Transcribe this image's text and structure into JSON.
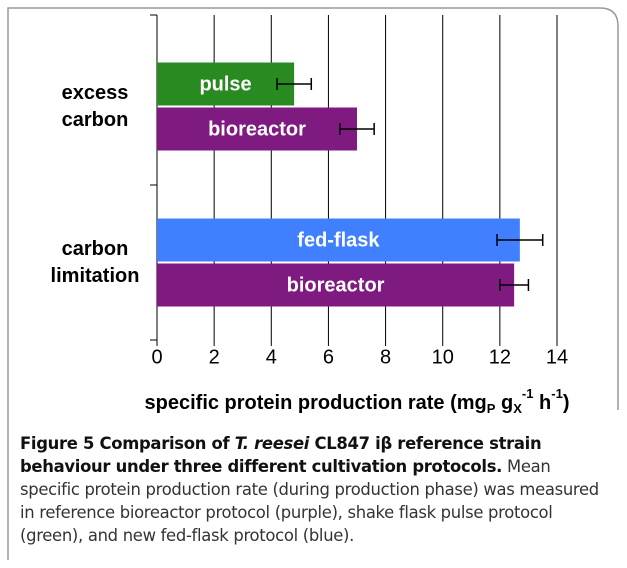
{
  "chart_data": {
    "type": "grouped-hbar",
    "groups": [
      {
        "label": [
          "excess",
          "carbon"
        ],
        "bars": [
          {
            "name": "pulse",
            "color": "#2a8a22",
            "value": 4.8,
            "error": 0.6
          },
          {
            "name": "bioreactor",
            "color": "#7f1a80",
            "value": 7.0,
            "error": 0.6
          }
        ]
      },
      {
        "label": [
          "carbon",
          "limitation"
        ],
        "bars": [
          {
            "name": "fed-flask",
            "color": "#4080ff",
            "value": 12.7,
            "error": 0.8
          },
          {
            "name": "bioreactor",
            "color": "#7f1a80",
            "value": 12.5,
            "error": 0.5
          }
        ]
      }
    ],
    "xlim": [
      0,
      14
    ],
    "xticks": [
      0,
      2,
      4,
      6,
      8,
      10,
      12,
      14
    ],
    "grid": true,
    "xlabel": [
      {
        "text": "specific protein production rate (mg",
        "shift": "base"
      },
      {
        "text": "P",
        "shift": "sub"
      },
      {
        "text": " g",
        "shift": "base"
      },
      {
        "text": "X",
        "shift": "sub"
      },
      {
        "text": "-1",
        "shift": "sup"
      },
      {
        "text": " h",
        "shift": "base"
      },
      {
        "text": "-1",
        "shift": "sup"
      },
      {
        "text": ")",
        "shift": "base"
      }
    ]
  },
  "caption": {
    "title": [
      "Figure 5 Comparison of ",
      "T. reesei",
      " CL847 iβ reference strain behaviour under three different cultivation protocols."
    ],
    "text": "Mean specific protein production rate (during production phase) was measured in reference bioreactor protocol (purple), shake flask pulse protocol (green), and new fed-flask protocol (blue)."
  }
}
